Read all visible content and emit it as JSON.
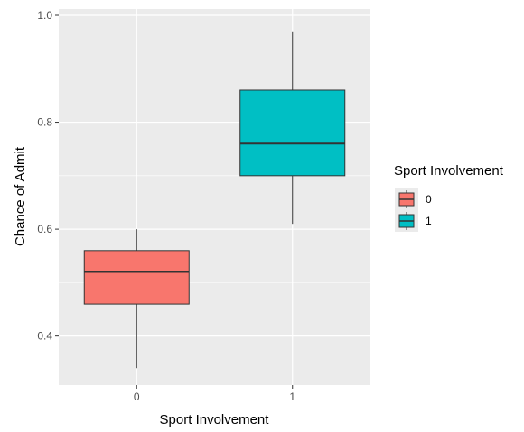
{
  "chart_data": {
    "type": "boxplot",
    "xlabel": "Sport Involvement",
    "ylabel": "Chance of Admit",
    "categories": [
      "0",
      "1"
    ],
    "ylim": [
      0.31,
      1.0
    ],
    "yticks": [
      0.4,
      0.6,
      0.8,
      1.0
    ],
    "ytick_labels": [
      "0.4",
      "0.6",
      "0.8",
      "1.0"
    ],
    "grid": true,
    "legend": {
      "title": "Sport Involvement",
      "position": "right",
      "entries": [
        "0",
        "1"
      ]
    },
    "series": [
      {
        "category": "0",
        "fill": "#F8766D",
        "min": 0.34,
        "q1": 0.46,
        "median": 0.52,
        "q3": 0.56,
        "max": 0.6
      },
      {
        "category": "1",
        "fill": "#00BFC4",
        "min": 0.61,
        "q1": 0.7,
        "median": 0.76,
        "q3": 0.86,
        "max": 0.97
      }
    ]
  }
}
